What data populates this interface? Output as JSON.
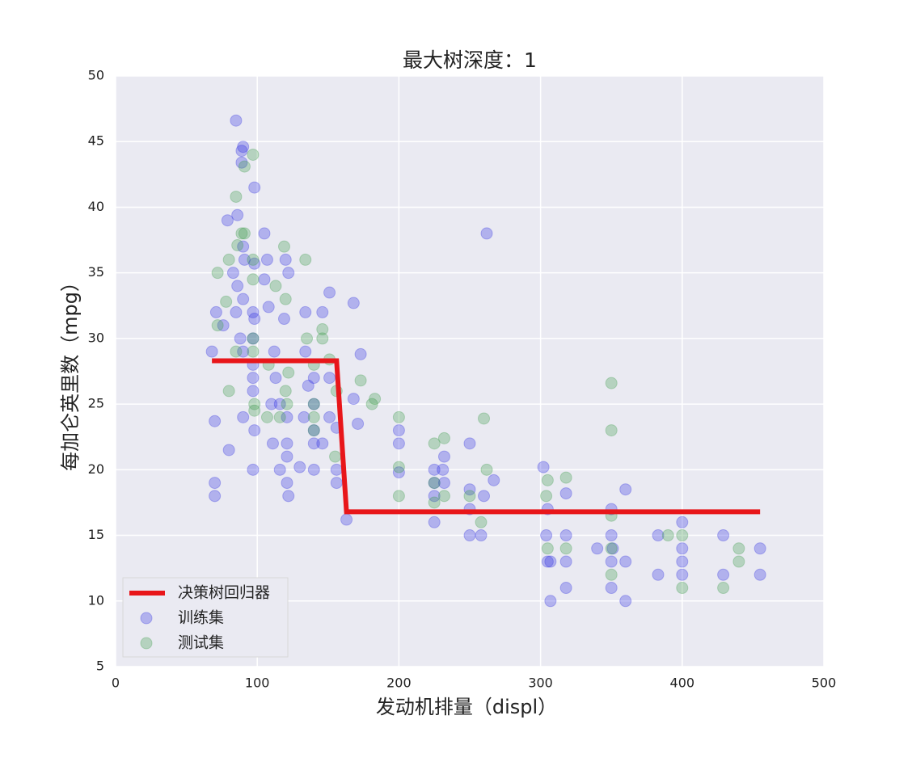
{
  "chart_data": {
    "type": "scatter",
    "title": "最大树深度：1",
    "x_label": "发动机排量（displ）",
    "y_label": "每加仑英里数（mpg）",
    "xlim": [
      0,
      500
    ],
    "xticks": [
      0,
      100,
      200,
      300,
      400,
      500
    ],
    "ylim": [
      5,
      50
    ],
    "yticks": [
      5,
      10,
      15,
      20,
      25,
      30,
      35,
      40,
      45,
      50
    ],
    "grid": true,
    "legend": "lower left",
    "series": [
      {
        "name": "决策树回归器",
        "color": "#e8161a",
        "style": "line",
        "x": [
          68,
          156,
          163,
          455
        ],
        "values": [
          28.3,
          28.3,
          16.8,
          16.8
        ]
      },
      {
        "name": "训练集",
        "color": "#3030e0",
        "style": "marker",
        "x": [
          68,
          70,
          70,
          70,
          71,
          76,
          79,
          80,
          83,
          85,
          86,
          86,
          85,
          88,
          89,
          90,
          89,
          90,
          90,
          90,
          90,
          91,
          97,
          97,
          97,
          97,
          97,
          98,
          98,
          98,
          97,
          98,
          105,
          105,
          107,
          108,
          110,
          111,
          112,
          113,
          116,
          116,
          119,
          120,
          121,
          121,
          121,
          121,
          122,
          122,
          130,
          133,
          134,
          134,
          136,
          140,
          140,
          140,
          140,
          140,
          146,
          146,
          151,
          151,
          151,
          156,
          156,
          156,
          168,
          168,
          171,
          173,
          163,
          200,
          200,
          200,
          225,
          225,
          225,
          225,
          231,
          232,
          232,
          250,
          250,
          250,
          250,
          258,
          260,
          262,
          267,
          302,
          304,
          305,
          305,
          307,
          307,
          318,
          318,
          318,
          318,
          340,
          350,
          350,
          350,
          350,
          351,
          360,
          360,
          360,
          383,
          383,
          400,
          400,
          400,
          400,
          429,
          429,
          455,
          455
        ],
        "values": [
          29,
          23.7,
          19,
          18,
          32,
          31,
          39,
          21.5,
          35,
          32,
          39.4,
          34,
          46.6,
          30,
          44.3,
          44.6,
          43.4,
          37,
          33,
          29,
          24,
          36,
          32,
          30,
          28,
          27,
          26,
          41.5,
          35.7,
          23,
          20,
          31.5,
          38,
          34.5,
          36,
          32.4,
          25,
          22,
          29,
          27,
          25,
          20,
          31.5,
          36,
          24,
          22,
          21,
          19,
          18,
          35,
          20.2,
          24,
          32,
          29,
          26.4,
          25,
          23,
          22,
          20,
          27,
          32,
          22,
          33.5,
          27,
          24,
          23.2,
          19,
          20,
          32.7,
          25.4,
          23.5,
          28.8,
          16.2,
          23,
          22,
          19.8,
          20,
          19,
          18,
          16,
          20,
          19,
          21,
          22,
          18.5,
          17,
          15,
          15,
          18,
          38,
          19.2,
          20.2,
          15,
          13,
          17,
          13,
          10,
          15,
          18.2,
          13,
          11,
          14,
          17,
          15,
          13,
          11,
          14,
          18.5,
          13,
          10,
          15,
          12,
          16,
          14,
          13,
          12,
          15,
          12,
          14,
          12
        ]
      },
      {
        "name": "测试集",
        "color": "#3a9a4a",
        "style": "marker",
        "x": [
          72,
          72,
          78,
          80,
          80,
          85,
          85,
          86,
          89,
          91,
          91,
          97,
          97,
          97,
          97,
          97,
          98,
          98,
          107,
          108,
          113,
          116,
          119,
          120,
          120,
          121,
          122,
          134,
          135,
          140,
          140,
          140,
          140,
          146,
          146,
          151,
          155,
          156,
          173,
          181,
          183,
          200,
          200,
          200,
          225,
          225,
          225,
          232,
          232,
          250,
          258,
          260,
          262,
          304,
          305,
          305,
          318,
          318,
          350,
          350,
          350,
          350,
          350,
          390,
          400,
          400,
          440,
          440,
          429
        ],
        "values": [
          35,
          31,
          32.8,
          26,
          36,
          40.8,
          29,
          37.1,
          38,
          43.1,
          38,
          44,
          36,
          34.5,
          30,
          29,
          24.5,
          25,
          24,
          28,
          34,
          24,
          37,
          33,
          26,
          25,
          27.4,
          36,
          30,
          28,
          25,
          23,
          24,
          30.7,
          30,
          28.4,
          21,
          26,
          26.8,
          25,
          25.4,
          24,
          20.2,
          18,
          22,
          19,
          17.5,
          22.4,
          18,
          18,
          16,
          23.9,
          20,
          18,
          19.2,
          14,
          19.4,
          14,
          26.6,
          23,
          16.5,
          14,
          12,
          15,
          15,
          11,
          14,
          13,
          11
        ]
      }
    ]
  }
}
